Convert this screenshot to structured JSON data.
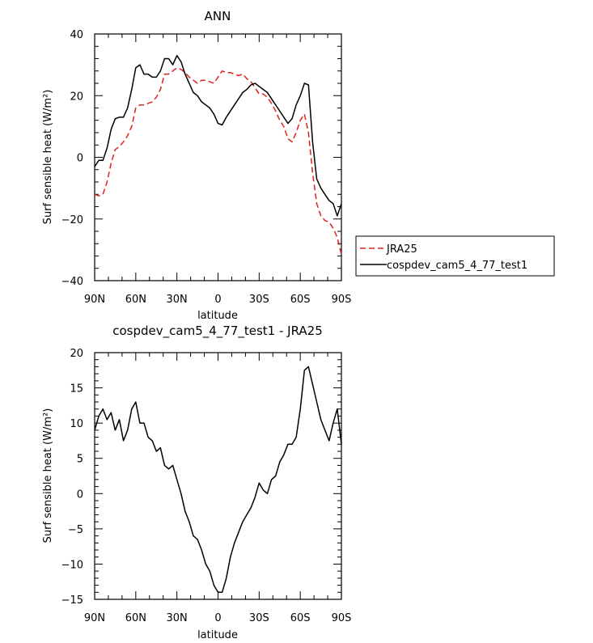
{
  "chart_data": [
    {
      "type": "line",
      "title": "ANN",
      "xlabel": "latitude",
      "ylabel": "Surf sensible heat (W/m²)",
      "xlim": [
        90,
        -90
      ],
      "ylim": [
        -40,
        40
      ],
      "x_ticks": [
        {
          "value": 90,
          "label": "90N"
        },
        {
          "value": 60,
          "label": "60N"
        },
        {
          "value": 30,
          "label": "30N"
        },
        {
          "value": 0,
          "label": "0"
        },
        {
          "value": -30,
          "label": "30S"
        },
        {
          "value": -60,
          "label": "60S"
        },
        {
          "value": -90,
          "label": "90S"
        }
      ],
      "y_ticks": [
        -40,
        -20,
        0,
        20,
        40
      ],
      "legend": {
        "placement": "outside-right"
      },
      "series": [
        {
          "name": "JRA25",
          "color": "#e02020",
          "dash": "dashed",
          "x": [
            90,
            87,
            84,
            81,
            78,
            75,
            72,
            69,
            66,
            63,
            60,
            57,
            54,
            51,
            48,
            45,
            42,
            39,
            36,
            33,
            30,
            27,
            24,
            21,
            18,
            15,
            12,
            9,
            6,
            3,
            0,
            -3,
            -6,
            -9,
            -12,
            -15,
            -18,
            -21,
            -24,
            -27,
            -30,
            -33,
            -36,
            -39,
            -42,
            -45,
            -48,
            -51,
            -54,
            -57,
            -60,
            -63,
            -66,
            -69,
            -72,
            -75,
            -78,
            -81,
            -84,
            -87,
            -90
          ],
          "y": [
            -12,
            -12.5,
            -12,
            -8,
            -2,
            2.5,
            3.5,
            5,
            7,
            10,
            16,
            17,
            17,
            17.5,
            18,
            19.5,
            22,
            27,
            27,
            28,
            29,
            28.5,
            27.5,
            26,
            25,
            24,
            25,
            25,
            24.5,
            24,
            26,
            28,
            27.5,
            27.5,
            27,
            26.5,
            27,
            25.5,
            24.5,
            22.5,
            20.5,
            20.5,
            19.5,
            17.5,
            15,
            12,
            10,
            6,
            5,
            8,
            12,
            14,
            8,
            -5,
            -15,
            -19,
            -20.5,
            -21,
            -23,
            -26,
            -31.5
          ]
        },
        {
          "name": "cospdev_cam5_4_77_test1",
          "color": "#000000",
          "dash": "solid",
          "x": [
            90,
            87,
            84,
            81,
            78,
            75,
            72,
            69,
            66,
            63,
            60,
            57,
            54,
            51,
            48,
            45,
            42,
            39,
            36,
            33,
            30,
            27,
            24,
            21,
            18,
            15,
            12,
            9,
            6,
            3,
            0,
            -3,
            -6,
            -9,
            -12,
            -15,
            -18,
            -21,
            -24,
            -27,
            -30,
            -33,
            -36,
            -39,
            -42,
            -45,
            -48,
            -51,
            -54,
            -57,
            -60,
            -63,
            -66,
            -69,
            -72,
            -75,
            -78,
            -81,
            -84,
            -87,
            -90
          ],
          "y": [
            -3,
            -1,
            -1,
            3,
            9,
            12.5,
            13,
            13,
            16,
            22,
            29,
            30,
            27,
            27,
            26,
            26,
            28,
            32,
            32,
            30,
            33,
            31,
            27,
            24,
            21,
            20,
            18,
            17,
            16,
            14,
            11,
            10.5,
            13,
            15,
            17,
            19,
            21,
            22,
            23.5,
            24,
            23,
            22,
            21,
            19,
            17,
            15,
            13,
            11,
            12.5,
            17,
            20,
            24,
            23.5,
            5,
            -7,
            -10,
            -12,
            -14,
            -15,
            -19,
            -15
          ]
        }
      ]
    },
    {
      "type": "line",
      "title": "cospdev_cam5_4_77_test1 - JRA25",
      "xlabel": "latitude",
      "ylabel": "Surf sensible heat (W/m²)",
      "xlim": [
        90,
        -90
      ],
      "ylim": [
        -15,
        20
      ],
      "x_ticks": [
        {
          "value": 90,
          "label": "90N"
        },
        {
          "value": 60,
          "label": "60N"
        },
        {
          "value": 30,
          "label": "30N"
        },
        {
          "value": 0,
          "label": "0"
        },
        {
          "value": -30,
          "label": "30S"
        },
        {
          "value": -60,
          "label": "60S"
        },
        {
          "value": -90,
          "label": "90S"
        }
      ],
      "y_ticks": [
        -15,
        -10,
        -5,
        0,
        5,
        10,
        15,
        20
      ],
      "series": [
        {
          "color": "#000000",
          "dash": "solid",
          "x": [
            90,
            87,
            84,
            81,
            78,
            75,
            72,
            69,
            66,
            63,
            60,
            57,
            54,
            51,
            48,
            45,
            42,
            39,
            36,
            33,
            30,
            27,
            24,
            21,
            18,
            15,
            12,
            9,
            6,
            3,
            0,
            -3,
            -6,
            -9,
            -12,
            -15,
            -18,
            -21,
            -24,
            -27,
            -30,
            -33,
            -36,
            -39,
            -42,
            -45,
            -48,
            -51,
            -54,
            -57,
            -60,
            -63,
            -66,
            -69,
            -72,
            -75,
            -78,
            -81,
            -84,
            -87,
            -90
          ],
          "y": [
            9,
            11,
            12,
            10.5,
            11.5,
            9,
            10.5,
            7.5,
            9,
            12,
            13,
            10,
            10,
            8,
            7.5,
            6,
            6.5,
            4,
            3.5,
            4,
            2,
            0,
            -2.5,
            -4,
            -6,
            -6.5,
            -8,
            -10,
            -11,
            -13,
            -14,
            -14,
            -12,
            -9,
            -7,
            -5.5,
            -4,
            -3,
            -2,
            -0.5,
            1.5,
            0.5,
            0,
            2,
            2.5,
            4.5,
            5.5,
            7,
            7,
            8,
            12,
            17.5,
            18,
            15.5,
            13,
            10.5,
            9,
            7.5,
            10,
            12,
            7
          ]
        }
      ]
    }
  ]
}
